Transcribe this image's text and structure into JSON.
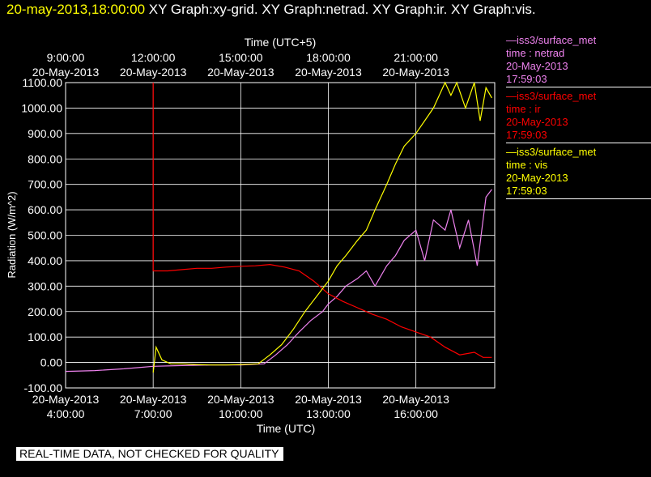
{
  "header": {
    "timestamp": "20-may-2013,18:00:00",
    "graphs": "XY Graph:xy-grid.  XY Graph:netrad.  XY Graph:ir.  XY Graph:vis."
  },
  "colors": {
    "netrad": "#ee82ee",
    "ir": "#ff0000",
    "vis": "#ffff00",
    "grid": "#ffffff",
    "background": "#000000"
  },
  "legend": [
    {
      "source": "—iss3/surface_met",
      "var": "time : netrad",
      "date": "20-May-2013",
      "time": "17:59:03",
      "color": "#ee82ee"
    },
    {
      "source": "—iss3/surface_met",
      "var": "time : ir",
      "date": "20-May-2013",
      "time": "17:59:03",
      "color": "#ff0000"
    },
    {
      "source": "—iss3/surface_met",
      "var": "time : vis",
      "date": "20-May-2013",
      "time": "17:59:03",
      "color": "#ffff00"
    }
  ],
  "disclaimer": "REAL-TIME DATA, NOT CHECKED FOR QUALITY",
  "chart_data": {
    "type": "line",
    "xlabel": "Time (UTC)",
    "x2label": "Time (UTC+5)",
    "ylabel": "Radiation (W/m^2)",
    "xlim": [
      4,
      18.7
    ],
    "ylim": [
      -100,
      1100
    ],
    "yticks": [
      -100,
      0,
      100,
      200,
      300,
      400,
      500,
      600,
      700,
      800,
      900,
      1000,
      1100
    ],
    "ytick_labels": [
      "-100.00",
      "0.00",
      "100.00",
      "200.00",
      "300.00",
      "400.00",
      "500.00",
      "600.00",
      "700.00",
      "800.00",
      "900.00",
      "1000.00",
      "1100.00"
    ],
    "xticks": [
      4,
      7,
      10,
      13,
      16
    ],
    "xtick_labels": [
      [
        "20-May-2013",
        "4:00:00"
      ],
      [
        "20-May-2013",
        "7:00:00"
      ],
      [
        "20-May-2013",
        "10:00:00"
      ],
      [
        "20-May-2013",
        "13:00:00"
      ],
      [
        "20-May-2013",
        "16:00:00"
      ]
    ],
    "x2ticks": [
      4,
      7,
      10,
      13,
      16
    ],
    "x2tick_labels": [
      [
        "9:00:00",
        "20-May-2013"
      ],
      [
        "12:00:00",
        "20-May-2013"
      ],
      [
        "15:00:00",
        "20-May-2013"
      ],
      [
        "18:00:00",
        "20-May-2013"
      ],
      [
        "21:00:00",
        "20-May-2013"
      ]
    ],
    "grid": true,
    "series": [
      {
        "name": "netrad",
        "color": "#ee82ee",
        "x": [
          4.0,
          5.0,
          6.0,
          6.5,
          7.0,
          8.0,
          9.0,
          10.0,
          10.8,
          11.2,
          11.6,
          12.0,
          12.4,
          12.8,
          13.0,
          13.3,
          13.6,
          14.0,
          14.3,
          14.6,
          15.0,
          15.3,
          15.6,
          16.0,
          16.3,
          16.6,
          17.0,
          17.2,
          17.5,
          17.8,
          18.1,
          18.4,
          18.6
        ],
        "y": [
          -35,
          -32,
          -25,
          -20,
          -15,
          -12,
          -10,
          -10,
          -5,
          30,
          70,
          120,
          165,
          200,
          230,
          260,
          300,
          330,
          360,
          300,
          380,
          420,
          480,
          520,
          400,
          560,
          520,
          600,
          450,
          560,
          380,
          650,
          680
        ]
      },
      {
        "name": "ir",
        "color": "#ff0000",
        "x": [
          7.0,
          7.0,
          7.0,
          7.5,
          8.0,
          8.5,
          9.0,
          9.5,
          10.0,
          10.5,
          11.0,
          11.5,
          12.0,
          12.5,
          13.0,
          13.5,
          14.0,
          14.5,
          15.0,
          15.5,
          16.0,
          16.5,
          17.0,
          17.5,
          18.0,
          18.3,
          18.6
        ],
        "y": [
          1100,
          370,
          360,
          360,
          365,
          370,
          370,
          375,
          378,
          380,
          385,
          375,
          360,
          320,
          270,
          240,
          215,
          190,
          170,
          140,
          120,
          100,
          60,
          30,
          40,
          20,
          20
        ]
      },
      {
        "name": "vis",
        "color": "#ffff00",
        "x": [
          7.0,
          7.1,
          7.3,
          7.6,
          8.0,
          8.5,
          9.0,
          9.5,
          10.0,
          10.6,
          11.0,
          11.4,
          11.8,
          12.2,
          12.6,
          13.0,
          13.3,
          13.6,
          14.0,
          14.3,
          14.6,
          15.0,
          15.3,
          15.6,
          16.0,
          16.3,
          16.6,
          17.0,
          17.2,
          17.4,
          17.7,
          18.0,
          18.2,
          18.4,
          18.6
        ],
        "y": [
          -40,
          60,
          10,
          -5,
          -5,
          -8,
          -10,
          -10,
          -8,
          -5,
          30,
          70,
          130,
          200,
          260,
          320,
          380,
          420,
          480,
          520,
          600,
          700,
          780,
          850,
          900,
          950,
          1000,
          1100,
          1050,
          1100,
          1000,
          1100,
          950,
          1080,
          1040
        ]
      }
    ]
  }
}
